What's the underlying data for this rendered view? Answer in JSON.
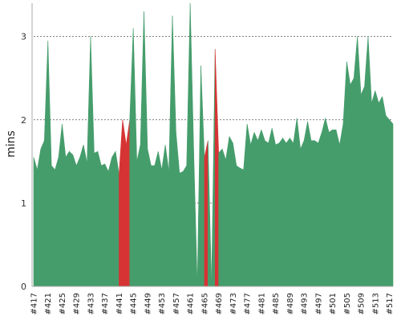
{
  "chart_data": {
    "type": "area",
    "ylabel": "mins",
    "xlabel": "",
    "title": "",
    "ylim": [
      0,
      3.4
    ],
    "yticks": [
      0,
      1,
      2,
      3
    ],
    "grid": "horizontal dashed",
    "x_start": 417,
    "x_label_prefix": "#",
    "x_tick_every": 4,
    "colors": {
      "normal": "#469d6c",
      "highlight": "#d63434",
      "grid": "#555555"
    },
    "highlight_ranges": [
      [
        441,
        444
      ],
      [
        465,
        466
      ],
      [
        468,
        469
      ]
    ],
    "values": [
      1.55,
      1.4,
      1.65,
      1.75,
      2.95,
      1.45,
      1.4,
      1.55,
      1.95,
      1.55,
      1.62,
      1.58,
      1.45,
      1.55,
      1.7,
      1.48,
      3.0,
      1.6,
      1.62,
      1.45,
      1.47,
      1.38,
      1.55,
      1.62,
      1.35,
      2.0,
      1.7,
      2.0,
      3.1,
      1.5,
      1.7,
      3.3,
      1.65,
      1.45,
      1.45,
      1.62,
      1.4,
      1.7,
      1.38,
      3.25,
      1.85,
      1.36,
      1.38,
      1.45,
      3.4,
      1.6,
      0.0,
      2.65,
      1.55,
      1.75,
      0.0,
      2.85,
      1.6,
      1.65,
      1.52,
      1.8,
      1.72,
      1.45,
      1.42,
      1.4,
      1.95,
      1.7,
      1.85,
      1.75,
      1.88,
      1.75,
      1.72,
      1.9,
      1.7,
      1.72,
      1.78,
      1.72,
      1.78,
      1.72,
      2.02,
      1.65,
      1.75,
      1.98,
      1.75,
      1.75,
      1.72,
      1.85,
      2.02,
      1.85,
      1.88,
      1.88,
      1.7,
      1.95,
      2.7,
      2.42,
      2.5,
      3.0,
      2.3,
      2.4,
      3.0,
      2.2,
      2.35,
      2.2,
      2.28,
      2.05,
      2.0,
      1.95
    ]
  }
}
